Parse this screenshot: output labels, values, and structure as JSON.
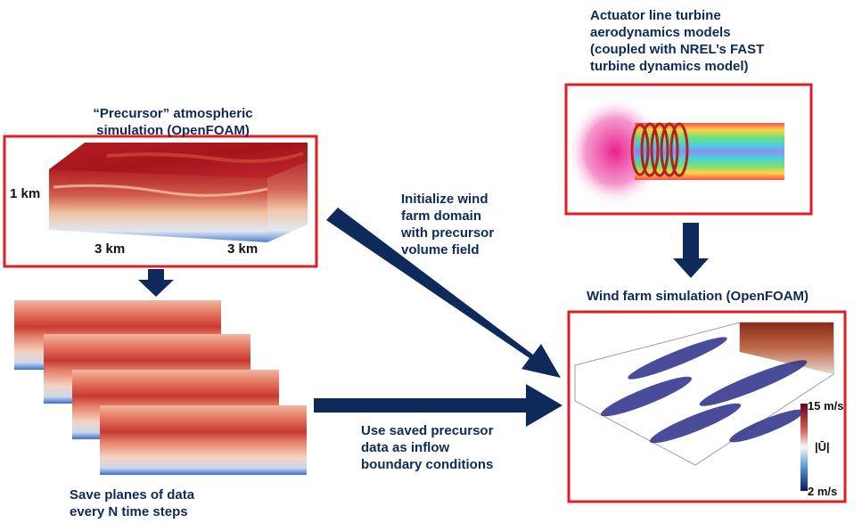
{
  "precursor": {
    "title_line1": "“Precursor” atmospheric",
    "title_line2": "simulation (OpenFOAM)",
    "dim_height": "1 km",
    "dim_x": "3 km",
    "dim_y": "3 km"
  },
  "actuator": {
    "line1": "Actuator line turbine",
    "line2": "aerodynamics models",
    "line3": "(coupled with NREL’s FAST",
    "line4": "turbine dynamics model)"
  },
  "initialize": {
    "line1": "Initialize wind",
    "line2": "farm domain",
    "line3": "with precursor",
    "line4": "volume field"
  },
  "windfarm": {
    "title": "Wind farm simulation (OpenFOAM)",
    "colorbar_max": "15 m/s",
    "colorbar_min": "2 m/s",
    "colorbar_label": "|Ū|"
  },
  "inflow": {
    "line1": "Use saved precursor",
    "line2": "data as inflow",
    "line3": "boundary conditions"
  },
  "planes": {
    "line1": "Save planes of data",
    "line2": "every N time steps"
  },
  "colors": {
    "arrow": "#0d2a5a",
    "frame": "#e31b23",
    "warm": "#b2182b",
    "cool": "#2c5fb8"
  }
}
